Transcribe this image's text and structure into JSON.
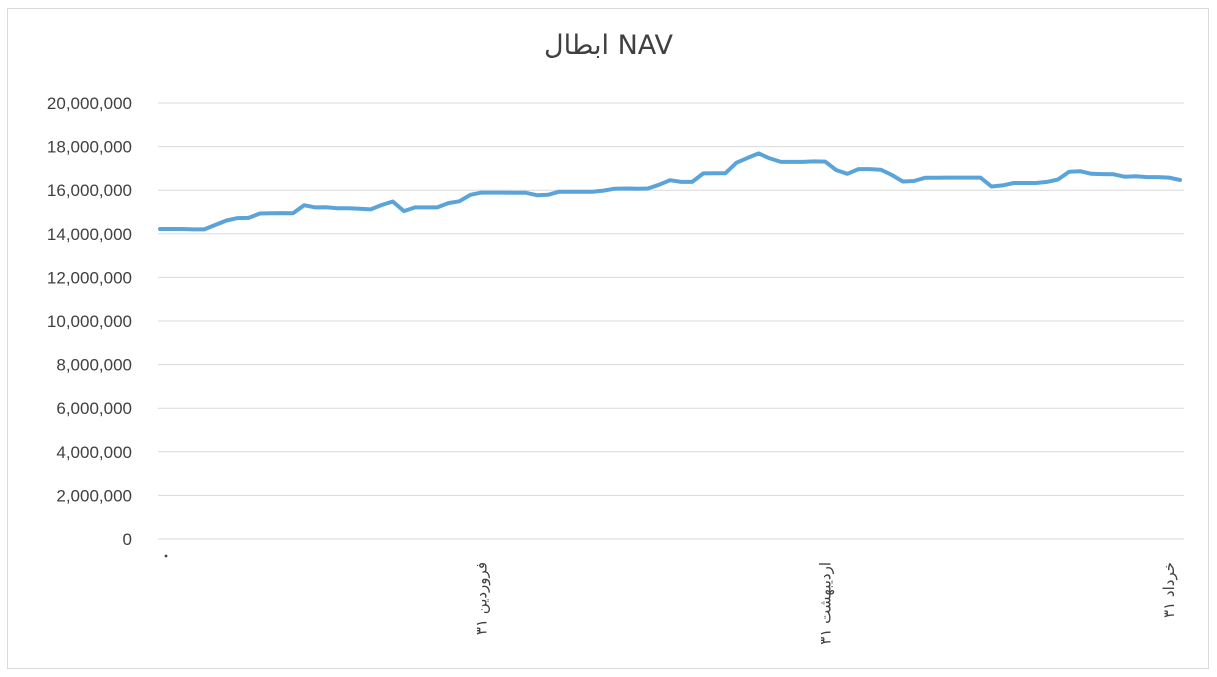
{
  "chart_data": {
    "type": "line",
    "title": "ابطال NAV",
    "xlabel": "",
    "ylabel": "",
    "ylim": [
      0,
      20000000
    ],
    "yticks": [
      0,
      2000000,
      4000000,
      6000000,
      8000000,
      10000000,
      12000000,
      14000000,
      16000000,
      18000000,
      20000000
    ],
    "ytick_labels": [
      "0",
      "2,000,000",
      "4,000,000",
      "6,000,000",
      "8,000,000",
      "10,000,000",
      "12,000,000",
      "14,000,000",
      "16,000,000",
      "18,000,000",
      "20,000,000"
    ],
    "grid": true,
    "x_tick_labels": [
      {
        "label": "۳۱ فروردین",
        "index": 30
      },
      {
        "label": "۳۱ اردیبهشت",
        "index": 61
      },
      {
        "label": "۳۱ خرداد",
        "index": 92
      }
    ],
    "series": [
      {
        "color": "#5BA4D9",
        "values": [
          14220000,
          14220000,
          14220000,
          14200000,
          14200000,
          14410000,
          14610000,
          14720000,
          14730000,
          14930000,
          14940000,
          14950000,
          14940000,
          15310000,
          15210000,
          15220000,
          15170000,
          15170000,
          15150000,
          15120000,
          15320000,
          15480000,
          15040000,
          15210000,
          15210000,
          15210000,
          15410000,
          15490000,
          15790000,
          15890000,
          15890000,
          15890000,
          15880000,
          15880000,
          15770000,
          15790000,
          15930000,
          15930000,
          15930000,
          15930000,
          15980000,
          16070000,
          16080000,
          16070000,
          16080000,
          16250000,
          16460000,
          16380000,
          16380000,
          16770000,
          16780000,
          16780000,
          17260000,
          17480000,
          17690000,
          17460000,
          17300000,
          17300000,
          17300000,
          17320000,
          17310000,
          16920000,
          16750000,
          16970000,
          16970000,
          16940000,
          16700000,
          16400000,
          16420000,
          16570000,
          16570000,
          16580000,
          16580000,
          16580000,
          16580000,
          16170000,
          16220000,
          16330000,
          16330000,
          16330000,
          16380000,
          16490000,
          16850000,
          16870000,
          16750000,
          16740000,
          16730000,
          16620000,
          16640000,
          16600000,
          16600000,
          16580000,
          16470000
        ]
      }
    ]
  }
}
